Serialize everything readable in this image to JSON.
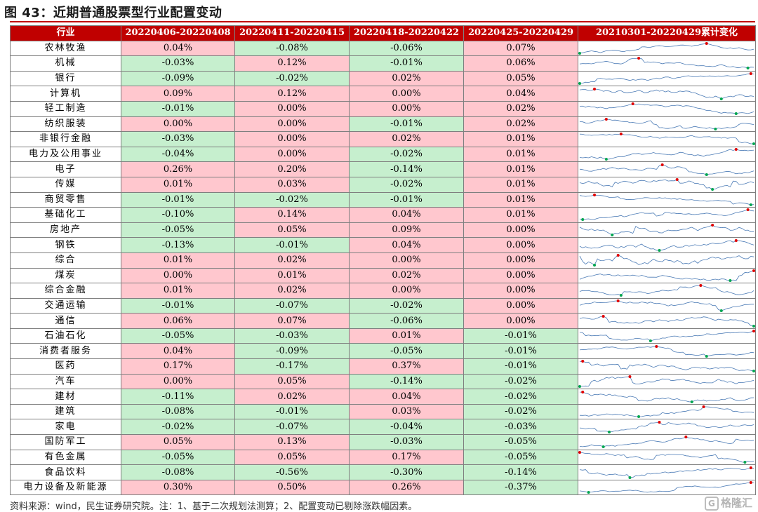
{
  "title": "图 43：近期普通股票型行业配置变动",
  "footer": "资料来源：wind，民生证券研究院。注：1、基于二次规划法测算；2、配置变动已剔除涨跌幅因素。",
  "watermark": "格隆汇",
  "watermark_logo": "G",
  "colors": {
    "header": "#c00000",
    "positive": "#ffc7ce",
    "negative": "#c6efce",
    "spark_line": "#4a7ab5",
    "spark_max": "#e00000",
    "spark_min": "#00a650"
  },
  "table": {
    "headers": [
      "行业",
      "20220406-20220408",
      "20220411-20220415",
      "20220418-20220422",
      "20220425-20220429",
      "20210301-20220429累计变化"
    ],
    "rows": [
      {
        "industry": "农林牧渔",
        "values": [
          "0.04%",
          "-0.08%",
          "-0.06%",
          "0.07%"
        ]
      },
      {
        "industry": "机械",
        "values": [
          "-0.03%",
          "0.12%",
          "-0.01%",
          "0.06%"
        ]
      },
      {
        "industry": "银行",
        "values": [
          "-0.09%",
          "-0.02%",
          "0.02%",
          "0.05%"
        ]
      },
      {
        "industry": "计算机",
        "values": [
          "0.09%",
          "0.12%",
          "0.00%",
          "0.04%"
        ]
      },
      {
        "industry": "轻工制造",
        "values": [
          "-0.01%",
          "0.00%",
          "0.00%",
          "0.02%"
        ]
      },
      {
        "industry": "纺织服装",
        "values": [
          "0.00%",
          "0.00%",
          "-0.01%",
          "0.02%"
        ]
      },
      {
        "industry": "非银行金融",
        "values": [
          "-0.03%",
          "0.00%",
          "0.02%",
          "0.01%"
        ]
      },
      {
        "industry": "电力及公用事业",
        "values": [
          "-0.04%",
          "0.00%",
          "-0.02%",
          "0.01%"
        ]
      },
      {
        "industry": "电子",
        "values": [
          "0.26%",
          "0.20%",
          "-0.14%",
          "0.01%"
        ]
      },
      {
        "industry": "传媒",
        "values": [
          "0.01%",
          "0.03%",
          "-0.02%",
          "0.01%"
        ]
      },
      {
        "industry": "商贸零售",
        "values": [
          "-0.01%",
          "-0.02%",
          "-0.01%",
          "0.01%"
        ]
      },
      {
        "industry": "基础化工",
        "values": [
          "-0.10%",
          "0.14%",
          "0.04%",
          "0.01%"
        ]
      },
      {
        "industry": "房地产",
        "values": [
          "-0.05%",
          "0.05%",
          "0.09%",
          "0.00%"
        ]
      },
      {
        "industry": "钢铁",
        "values": [
          "-0.13%",
          "-0.01%",
          "0.04%",
          "0.00%"
        ]
      },
      {
        "industry": "综合",
        "values": [
          "0.01%",
          "0.02%",
          "0.00%",
          "0.00%"
        ]
      },
      {
        "industry": "煤炭",
        "values": [
          "0.00%",
          "0.01%",
          "0.02%",
          "0.00%"
        ]
      },
      {
        "industry": "综合金融",
        "values": [
          "0.01%",
          "0.02%",
          "0.00%",
          "0.00%"
        ]
      },
      {
        "industry": "交通运输",
        "values": [
          "-0.01%",
          "-0.07%",
          "-0.02%",
          "0.00%"
        ]
      },
      {
        "industry": "通信",
        "values": [
          "0.06%",
          "0.07%",
          "-0.06%",
          "0.00%"
        ]
      },
      {
        "industry": "石油石化",
        "values": [
          "-0.05%",
          "-0.03%",
          "0.01%",
          "-0.01%"
        ]
      },
      {
        "industry": "消费者服务",
        "values": [
          "0.04%",
          "-0.09%",
          "-0.05%",
          "-0.01%"
        ]
      },
      {
        "industry": "医药",
        "values": [
          "0.17%",
          "-0.17%",
          "0.37%",
          "-0.01%"
        ]
      },
      {
        "industry": "汽车",
        "values": [
          "0.00%",
          "0.05%",
          "-0.14%",
          "-0.02%"
        ]
      },
      {
        "industry": "建材",
        "values": [
          "-0.11%",
          "0.02%",
          "0.04%",
          "-0.02%"
        ]
      },
      {
        "industry": "建筑",
        "values": [
          "-0.08%",
          "-0.01%",
          "0.03%",
          "-0.02%"
        ]
      },
      {
        "industry": "家电",
        "values": [
          "-0.02%",
          "-0.07%",
          "-0.04%",
          "-0.03%"
        ]
      },
      {
        "industry": "国防军工",
        "values": [
          "0.05%",
          "0.13%",
          "-0.03%",
          "-0.05%"
        ]
      },
      {
        "industry": "有色金属",
        "values": [
          "-0.05%",
          "0.05%",
          "0.17%",
          "-0.05%"
        ]
      },
      {
        "industry": "食品饮料",
        "values": [
          "-0.08%",
          "-0.56%",
          "-0.30%",
          "-0.14%"
        ]
      },
      {
        "industry": "电力设备及新能源",
        "values": [
          "0.30%",
          "0.50%",
          "0.26%",
          "-0.37%"
        ]
      }
    ]
  }
}
